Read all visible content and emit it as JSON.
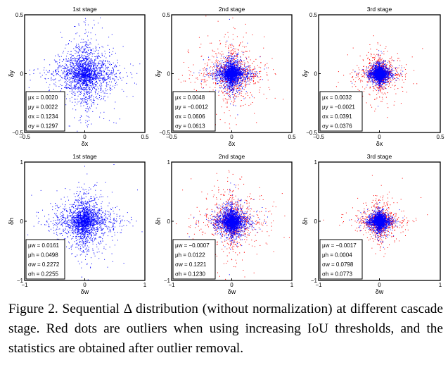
{
  "chart_data": [
    {
      "type": "scatter",
      "title": "1st stage",
      "xlabel": "δx",
      "ylabel": "δy",
      "xlim": [
        -0.5,
        0.5
      ],
      "ylim": [
        -0.5,
        0.5
      ],
      "xticks": [
        "−0.5",
        "0",
        "0.5"
      ],
      "yticks": [
        "−0.5",
        "0",
        "0.5"
      ],
      "series": [
        {
          "color": "#0000ff"
        }
      ],
      "stats": [
        "μx = 0.0020",
        "μy = 0.0022",
        "σx = 0.1234",
        "σy = 0.1297"
      ],
      "sd": [
        0.1234,
        0.1297
      ],
      "outliers": false
    },
    {
      "type": "scatter",
      "title": "2nd stage",
      "xlabel": "δx",
      "ylabel": "δy",
      "xlim": [
        -0.5,
        0.5
      ],
      "ylim": [
        -0.5,
        0.5
      ],
      "xticks": [
        "−0.5",
        "0",
        "0.5"
      ],
      "yticks": [
        "−0.5",
        "0",
        "0.5"
      ],
      "series": [
        {
          "color": "#0000ff"
        },
        {
          "color": "#ff0000"
        }
      ],
      "stats": [
        "μx = 0.0048",
        "μy = −0.0012",
        "σx = 0.0606",
        "σy = 0.0613"
      ],
      "sd": [
        0.0606,
        0.0613
      ],
      "outliers": true
    },
    {
      "type": "scatter",
      "title": "3rd stage",
      "xlabel": "δx",
      "ylabel": "δy",
      "xlim": [
        -0.5,
        0.5
      ],
      "ylim": [
        -0.5,
        0.5
      ],
      "xticks": [
        "−0.5",
        "0",
        "0.5"
      ],
      "yticks": [
        "−0.5",
        "0",
        "0.5"
      ],
      "series": [
        {
          "color": "#0000ff"
        },
        {
          "color": "#ff0000"
        }
      ],
      "stats": [
        "μx = 0.0032",
        "μy = −0.0021",
        "σx = 0.0391",
        "σy = 0.0376"
      ],
      "sd": [
        0.0391,
        0.0376
      ],
      "outliers": true
    },
    {
      "type": "scatter",
      "title": "1st stage",
      "xlabel": "δw",
      "ylabel": "δh",
      "xlim": [
        -1,
        1
      ],
      "ylim": [
        -1,
        1
      ],
      "xticks": [
        "−1",
        "0",
        "1"
      ],
      "yticks": [
        "−1",
        "0",
        "1"
      ],
      "series": [
        {
          "color": "#0000ff"
        }
      ],
      "stats": [
        "μw = 0.0161",
        "μh = 0.0498",
        "σw = 0.2272",
        "σh = 0.2255"
      ],
      "sd": [
        0.2272,
        0.2255
      ],
      "outliers": false
    },
    {
      "type": "scatter",
      "title": "2nd stage",
      "xlabel": "δw",
      "ylabel": "δh",
      "xlim": [
        -1,
        1
      ],
      "ylim": [
        -1,
        1
      ],
      "xticks": [
        "−1",
        "0",
        "1"
      ],
      "yticks": [
        "−1",
        "0",
        "1"
      ],
      "series": [
        {
          "color": "#0000ff"
        },
        {
          "color": "#ff0000"
        }
      ],
      "stats": [
        "μw = −0.0007",
        "μh = 0.0122",
        "σw = 0.1221",
        "σh = 0.1230"
      ],
      "sd": [
        0.1221,
        0.123
      ],
      "outliers": true
    },
    {
      "type": "scatter",
      "title": "3rd stage",
      "xlabel": "δw",
      "ylabel": "δh",
      "xlim": [
        -1,
        1
      ],
      "ylim": [
        -1,
        1
      ],
      "xticks": [
        "−1",
        "0",
        "1"
      ],
      "yticks": [
        "−1",
        "0",
        "1"
      ],
      "series": [
        {
          "color": "#0000ff"
        },
        {
          "color": "#ff0000"
        }
      ],
      "stats": [
        "μw = −0.0017",
        "μh = 0.0004",
        "σw = 0.0798",
        "σh = 0.0773"
      ],
      "sd": [
        0.0798,
        0.0773
      ],
      "outliers": true
    }
  ],
  "caption": "Figure 2. Sequential Δ distribution (without normalization) at different cascade stage. Red dots are outliers when using increasing IoU thresholds, and the statistics are obtained after outlier removal."
}
